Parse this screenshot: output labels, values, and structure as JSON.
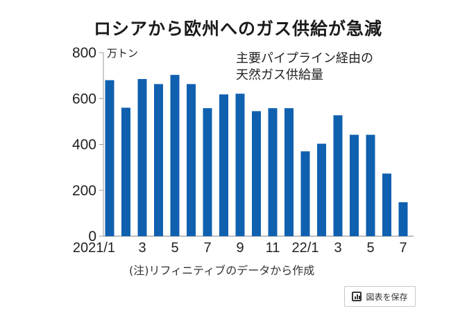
{
  "chart_data": {
    "type": "bar",
    "title": "ロシアから欧州へのガス供給が急減",
    "annotation": [
      "主要パイプライン経由の",
      "天然ガス供給量"
    ],
    "ylabel": "万トン",
    "xlabel": "",
    "ylim": [
      0,
      800
    ],
    "yticks": [
      0,
      200,
      400,
      600,
      800
    ],
    "ytick_labels": [
      "0",
      "200",
      "400",
      "600",
      "800"
    ],
    "categories": [
      "2021/1",
      "2021/2",
      "2021/3",
      "2021/4",
      "2021/5",
      "2021/6",
      "2021/7",
      "2021/8",
      "2021/9",
      "2021/10",
      "2021/11",
      "2021/12",
      "2022/1",
      "2022/2",
      "2022/3",
      "2022/4",
      "2022/5",
      "2022/6",
      "2022/7"
    ],
    "xtick_labels": [
      {
        "index": 0,
        "label": "2021/1"
      },
      {
        "index": 2,
        "label": "3"
      },
      {
        "index": 4,
        "label": "5"
      },
      {
        "index": 6,
        "label": "7"
      },
      {
        "index": 8,
        "label": "9"
      },
      {
        "index": 10,
        "label": "11"
      },
      {
        "index": 12,
        "label": "22/1"
      },
      {
        "index": 14,
        "label": "3"
      },
      {
        "index": 16,
        "label": "5"
      },
      {
        "index": 18,
        "label": "7"
      }
    ],
    "values": [
      680,
      560,
      685,
      663,
      703,
      663,
      558,
      618,
      621,
      545,
      558,
      558,
      370,
      403,
      527,
      442,
      442,
      273,
      148
    ],
    "bar_color": "#1060b0",
    "grid": false,
    "note": "(注)リフィニティブのデータから作成"
  },
  "ui": {
    "save_button_label": "図表を保存",
    "save_icon": "bar-chart-icon"
  }
}
